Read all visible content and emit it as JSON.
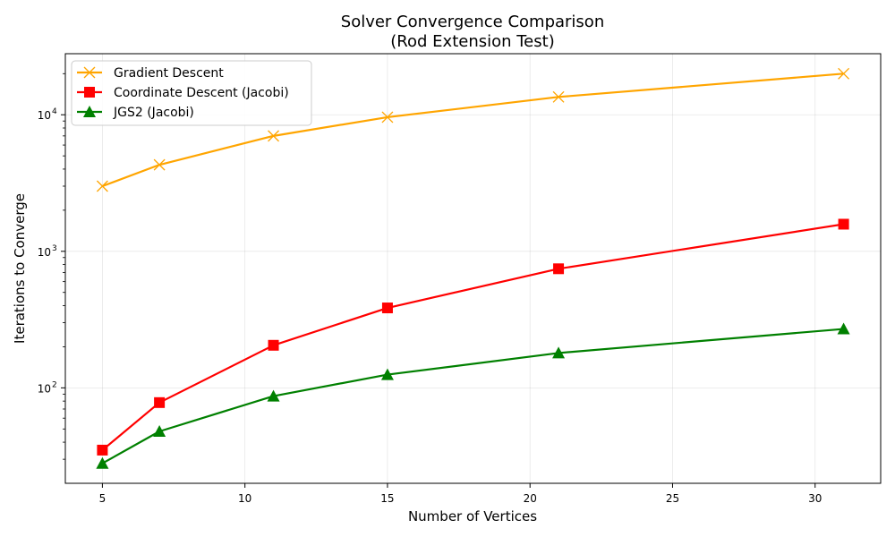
{
  "chart_data": {
    "type": "line",
    "title_line1": "Solver Convergence Comparison",
    "title_line2": "(Rod Extension Test)",
    "xlabel": "Number of Vertices",
    "ylabel": "Iterations to Converge",
    "xlim": [
      3.7,
      32.3
    ],
    "ylim": [
      20,
      28000
    ],
    "yscale": "log",
    "grid": true,
    "legend_position": "top-left",
    "x_ticks": [
      "5",
      "10",
      "15",
      "20",
      "25",
      "30"
    ],
    "y_ticks": [
      "10",
      "10",
      "10"
    ],
    "y_tick_exponents": [
      "2",
      "3",
      "4"
    ],
    "series": [
      {
        "name": "Gradient Descent",
        "color": "#FFA500",
        "marker": "x",
        "x": [
          5,
          7,
          11,
          15,
          21,
          31
        ],
        "y": [
          3000,
          4300,
          7000,
          9600,
          13500,
          20000
        ]
      },
      {
        "name": "Coordinate Descent (Jacobi)",
        "color": "#FF0000",
        "marker": "square",
        "x": [
          5,
          7,
          11,
          15,
          21,
          31
        ],
        "y": [
          35,
          78,
          205,
          385,
          745,
          1580
        ]
      },
      {
        "name": "JGS2 (Jacobi)",
        "color": "#008000",
        "marker": "triangle",
        "x": [
          5,
          7,
          11,
          15,
          21,
          31
        ],
        "y": [
          28,
          48,
          87,
          125,
          180,
          270
        ]
      }
    ]
  }
}
